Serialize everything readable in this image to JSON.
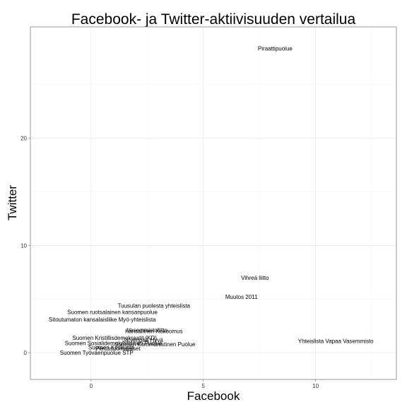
{
  "chart_data": {
    "type": "scatter",
    "title": "Facebook- ja Twitter-aktiivisuuden vertailua",
    "xlabel": "Facebook",
    "ylabel": "Twitter",
    "xlim": [
      -2.7,
      13.6
    ],
    "ylim": [
      -2.5,
      30.4
    ],
    "xticks": [
      0,
      5,
      10
    ],
    "yticks": [
      0,
      10,
      20
    ],
    "grid": true,
    "legend": "none",
    "points": [
      {
        "label": "Piraattipuolue",
        "x": 8.2,
        "y": 28.4
      },
      {
        "label": "Vihreä liitto",
        "x": 7.3,
        "y": 7.0
      },
      {
        "label": "Muutos 2011",
        "x": 6.7,
        "y": 5.2
      },
      {
        "label": "Yhteislista Vapaa Vasemmisto",
        "x": 10.9,
        "y": 1.1
      },
      {
        "label": "Tuusulan puolesta yhteislista",
        "x": 2.8,
        "y": 4.4
      },
      {
        "label": "Suomen ruotsalainen kansanpuolue",
        "x": 0.95,
        "y": 3.8
      },
      {
        "label": "Sitoutumaton kansalaisliike Myö-yhteislista",
        "x": 0.5,
        "y": 3.1
      },
      {
        "label": "Vasemmistoliitto",
        "x": 2.5,
        "y": 2.1
      },
      {
        "label": "Kansallinen Kokoomus",
        "x": 2.8,
        "y": 2.0
      },
      {
        "label": "Suomen Kristillisdemokraatit (KD)",
        "x": 1.05,
        "y": 1.4
      },
      {
        "label": "Järvenpää Hyvä",
        "x": 2.3,
        "y": 1.2
      },
      {
        "label": "Suomen Sosialidemokraattinen Puolue",
        "x": 1.0,
        "y": 0.9
      },
      {
        "label": "Suomen Kommunistinen Puolue",
        "x": 2.85,
        "y": 0.8
      },
      {
        "label": "Suomen Keskusta",
        "x": 0.9,
        "y": 0.5
      },
      {
        "label": "Perussuomalaiset",
        "x": 1.2,
        "y": 0.4
      },
      {
        "label": "Suomen Työväenpuolue STP",
        "x": 0.25,
        "y": 0.0
      }
    ]
  }
}
